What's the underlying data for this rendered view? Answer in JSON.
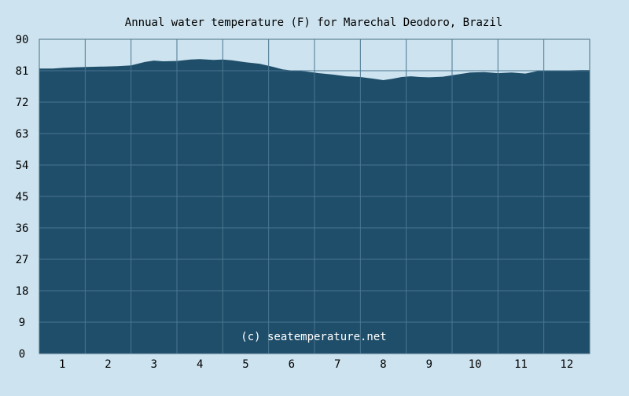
{
  "colors": {
    "background": "#cde3ef",
    "area_fill": "#1f4e6a",
    "grid": "#4a7791",
    "frame": "#4a6f85",
    "text": "#000000",
    "watermark": "#ffffff"
  },
  "chart_data": {
    "type": "area",
    "title": "Annual water temperature (F) for Marechal Deodoro, Brazil",
    "watermark": "(c) seatemperature.net",
    "xlabel": "",
    "ylabel": "",
    "ylim": [
      0,
      90
    ],
    "yticks": [
      "0",
      "9",
      "18",
      "27",
      "36",
      "45",
      "54",
      "63",
      "72",
      "81",
      "90"
    ],
    "xticks": [
      "1",
      "2",
      "3",
      "4",
      "5",
      "6",
      "7",
      "8",
      "9",
      "10",
      "11",
      "12"
    ],
    "xlim": [
      0.5,
      12.5
    ],
    "grid": true,
    "series": [
      {
        "x": [
          0.5,
          0.8,
          1.0,
          1.3,
          1.6,
          1.9,
          2.2,
          2.5,
          2.8,
          3.0,
          3.2,
          3.5,
          3.8,
          4.0,
          4.3,
          4.5,
          4.7,
          5.0,
          5.3,
          5.6,
          5.8,
          6.0,
          6.3,
          6.6,
          6.9,
          7.2,
          7.5,
          7.8,
          8.0,
          8.2,
          8.4,
          8.6,
          8.8,
          9.0,
          9.3,
          9.6,
          9.9,
          10.2,
          10.5,
          10.8,
          11.1,
          11.4,
          11.7,
          12.0,
          12.3,
          12.5
        ],
        "y": [
          81.6,
          81.6,
          81.8,
          82.0,
          82.1,
          82.2,
          82.3,
          82.5,
          83.5,
          83.9,
          83.7,
          83.8,
          84.2,
          84.3,
          84.1,
          84.2,
          84.0,
          83.4,
          83.0,
          82.1,
          81.4,
          81.1,
          80.8,
          80.3,
          79.9,
          79.4,
          79.2,
          78.7,
          78.3,
          78.7,
          79.2,
          79.4,
          79.2,
          79.1,
          79.3,
          79.9,
          80.5,
          80.6,
          80.3,
          80.5,
          80.2,
          81.0,
          81.1,
          81.1,
          81.2,
          81.2
        ]
      }
    ]
  }
}
